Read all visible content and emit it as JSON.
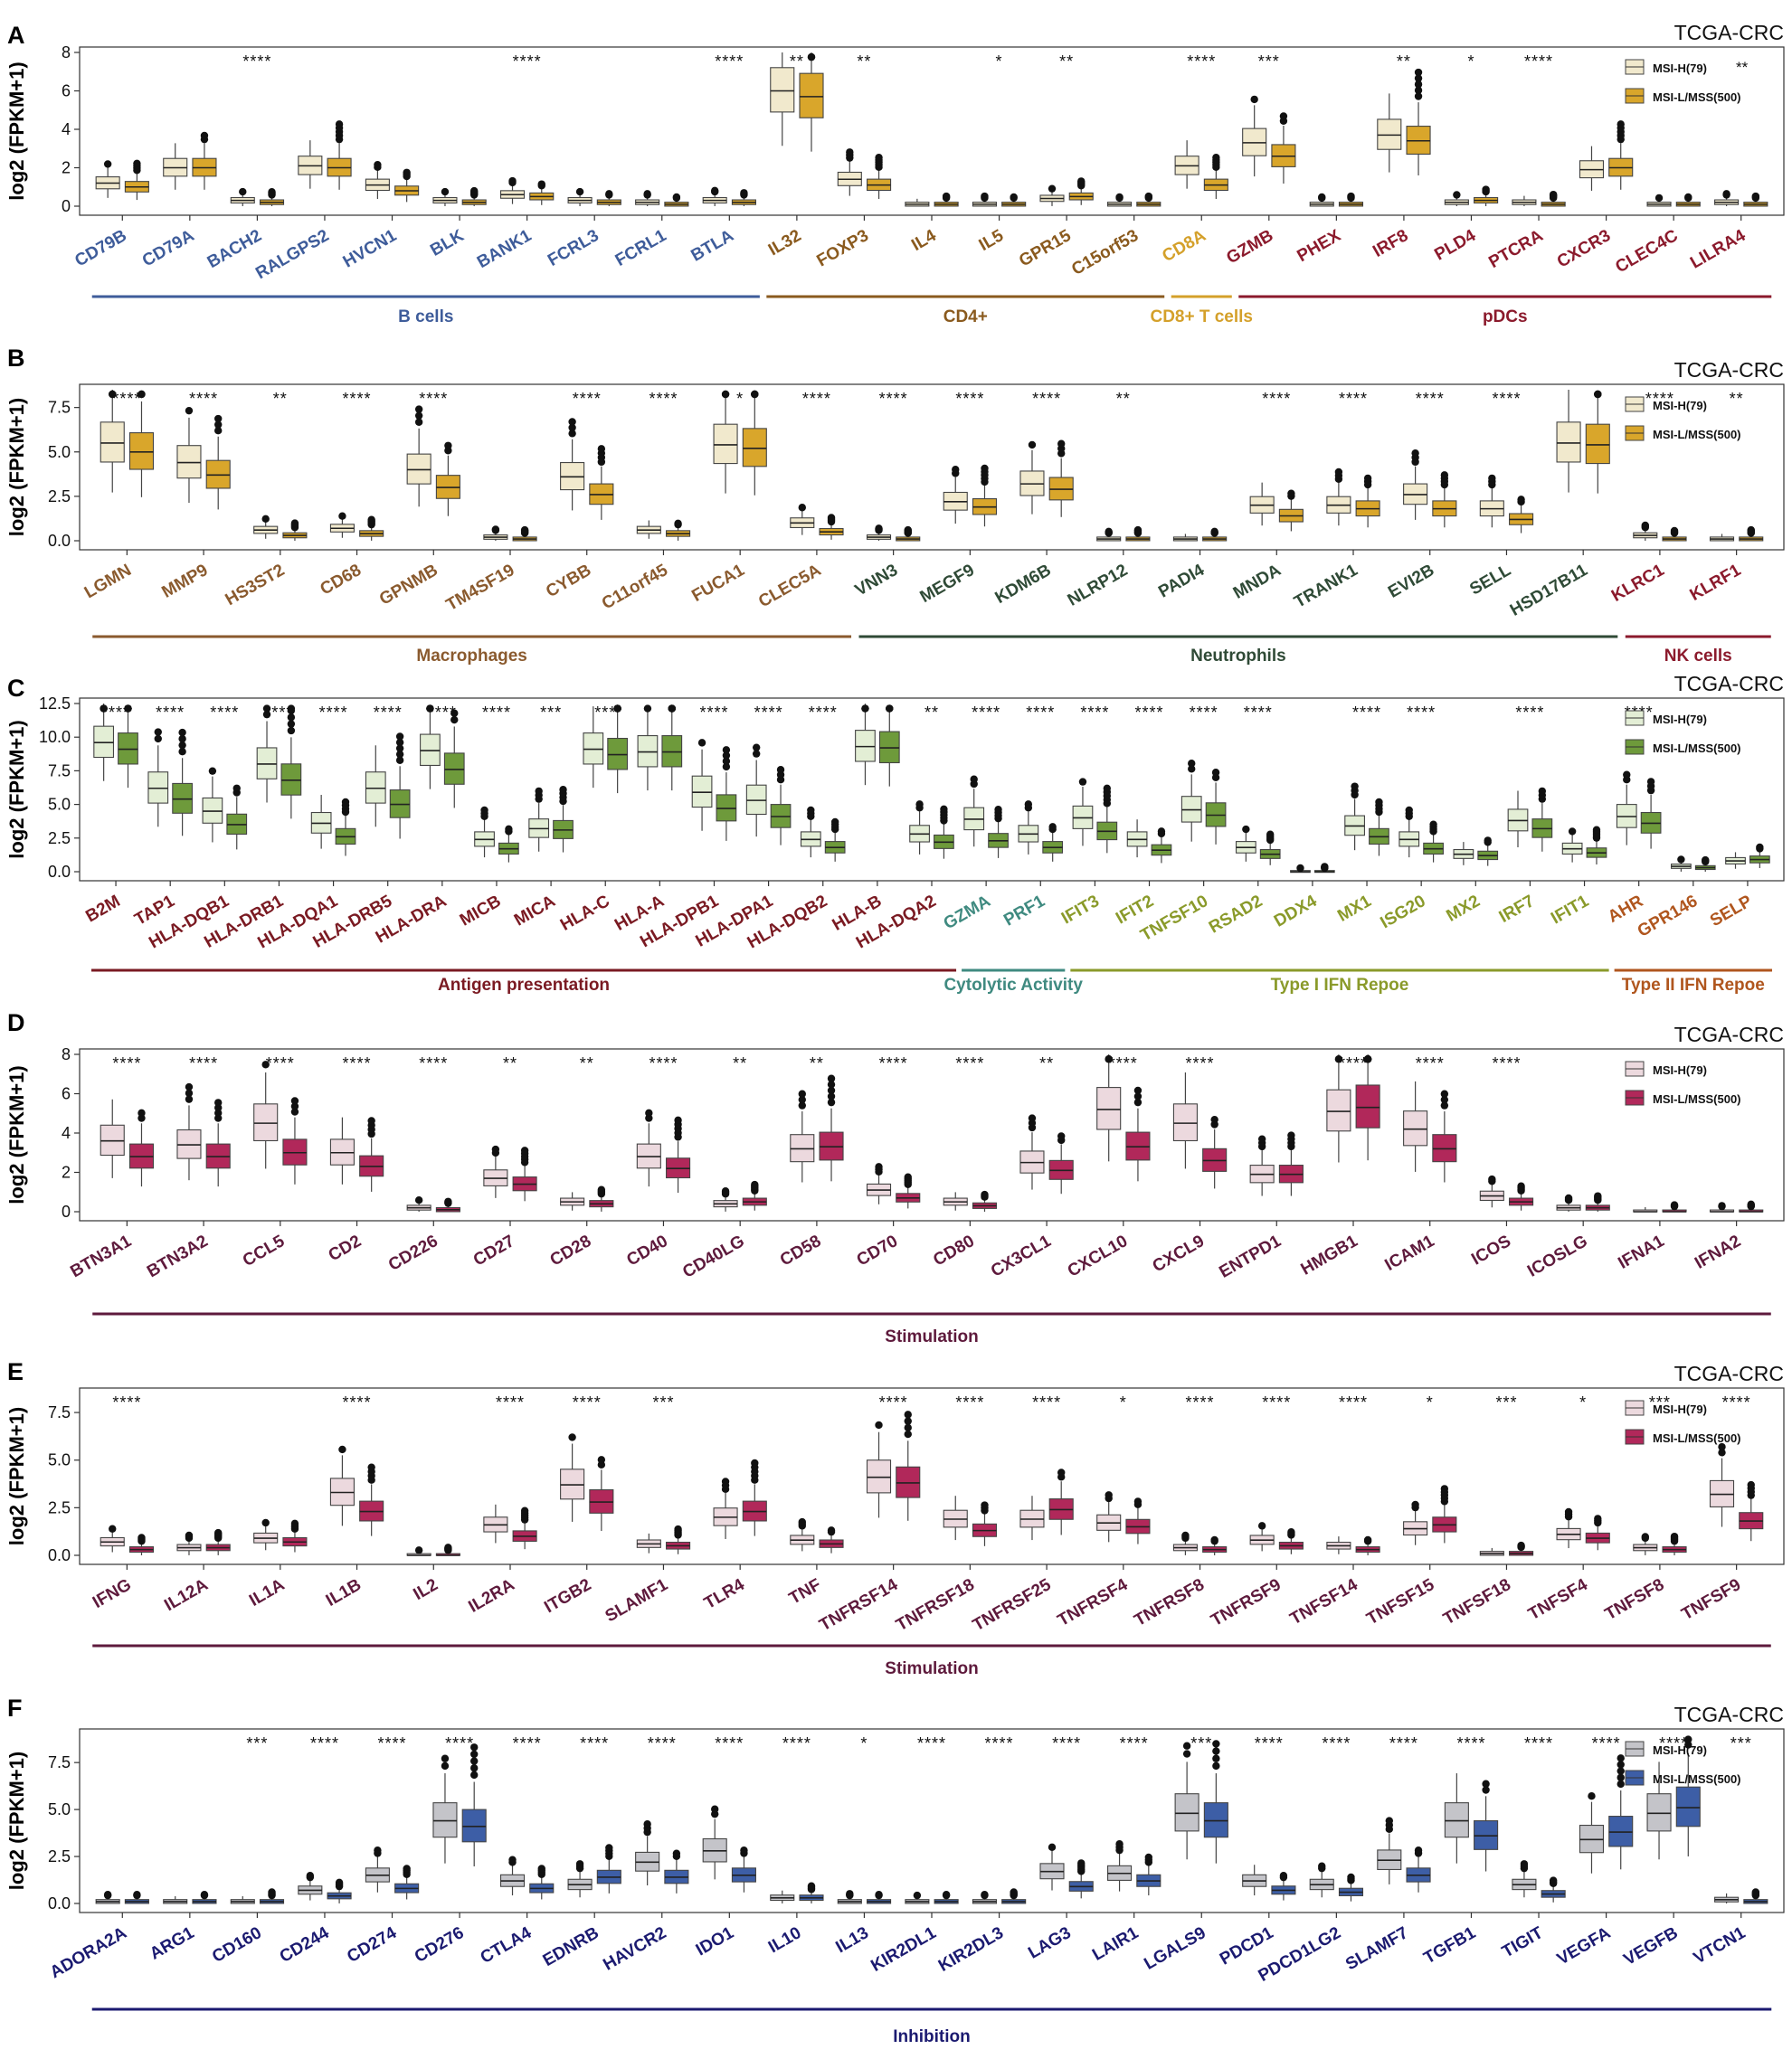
{
  "legend_labels": [
    "MSI-H(79)",
    "MSI-L/MSS(500)"
  ],
  "legend_extra_A": "**",
  "chart_data": [
    {
      "panel": "A",
      "type": "box",
      "dataset": "TCGA-CRC",
      "ylabel": "log2 (FPKM+1)",
      "ylim": [
        0,
        8
      ],
      "yticks": [
        "0",
        "2",
        "4",
        "6",
        "8"
      ],
      "legend_position": "top-right",
      "colors": {
        "high": "#f1e9cd",
        "low": "#d9a62b"
      },
      "genes": [
        "CD79B",
        "CD79A",
        "BACH2",
        "RALGPS2",
        "HVCN1",
        "BLK",
        "BANK1",
        "FCRL3",
        "FCRL1",
        "BTLA",
        "IL32",
        "FOXP3",
        "IL4",
        "IL5",
        "GPR15",
        "C15orf53",
        "CD8A",
        "GZMB",
        "PHEX",
        "IRF8",
        "PLD4",
        "PTCRA",
        "CXCR3",
        "CLEC4C",
        "LILRA4"
      ],
      "gene_colors": [
        "#3e5c9a",
        "#3e5c9a",
        "#3e5c9a",
        "#3e5c9a",
        "#3e5c9a",
        "#3e5c9a",
        "#3e5c9a",
        "#3e5c9a",
        "#3e5c9a",
        "#3e5c9a",
        "#8a5a1e",
        "#8a5a1e",
        "#8a5a1e",
        "#8a5a1e",
        "#8a5a1e",
        "#8a5a1e",
        "#d4a02a",
        "#8b1a2c",
        "#8b1a2c",
        "#8b1a2c",
        "#8b1a2c",
        "#8b1a2c",
        "#8b1a2c",
        "#8b1a2c",
        "#8b1a2c"
      ],
      "sig": [
        "",
        "",
        "****",
        "",
        "",
        "",
        "****",
        "",
        "",
        "****",
        "**",
        "**",
        "",
        "*",
        "**",
        "",
        "****",
        "***",
        "",
        "**",
        "*",
        "****",
        "",
        "",
        ""
      ],
      "groups": [
        {
          "label": "B cells",
          "start": 0,
          "end": 9,
          "color": "#3e5c9a"
        },
        {
          "label": "CD4+",
          "start": 10,
          "end": 15,
          "color": "#8a5a1e"
        },
        {
          "label": "CD8+ T cells",
          "start": 16,
          "end": 16,
          "color": "#d4a02a"
        },
        {
          "label": "pDCs",
          "start": 17,
          "end": 24,
          "color": "#8b1a2c"
        }
      ],
      "medians_high": [
        1.2,
        2.0,
        0.3,
        2.1,
        1.1,
        0.3,
        0.6,
        0.3,
        0.2,
        0.3,
        6.0,
        1.4,
        0.1,
        0.1,
        0.4,
        0.1,
        2.1,
        3.3,
        0.1,
        3.7,
        0.2,
        0.2,
        1.9,
        0.1,
        0.2
      ],
      "medians_low": [
        1.0,
        2.0,
        0.2,
        2.0,
        0.8,
        0.2,
        0.5,
        0.2,
        0.1,
        0.2,
        5.7,
        1.1,
        0.1,
        0.1,
        0.5,
        0.1,
        1.1,
        2.6,
        0.1,
        3.4,
        0.3,
        0.1,
        2.0,
        0.1,
        0.1
      ]
    },
    {
      "panel": "B",
      "type": "box",
      "dataset": "TCGA-CRC",
      "ylabel": "log2 (FPKM+1)",
      "ylim": [
        0,
        8.5
      ],
      "yticks": [
        "0.0",
        "2.5",
        "5.0",
        "7.5"
      ],
      "legend_position": "top-right",
      "colors": {
        "high": "#f1e9cd",
        "low": "#d9a62b"
      },
      "genes": [
        "LGMN",
        "MMP9",
        "HS3ST2",
        "CD68",
        "GPNMB",
        "TM4SF19",
        "CYBB",
        "C11orf45",
        "FUCA1",
        "CLEC5A",
        "VNN3",
        "MEGF9",
        "KDM6B",
        "NLRP12",
        "PADI4",
        "MNDA",
        "TRANK1",
        "EVI2B",
        "SELL",
        "HSD17B11",
        "KLRC1",
        "KLRF1"
      ],
      "gene_colors": [
        "#8a5a2e",
        "#8a5a2e",
        "#8a5a2e",
        "#8a5a2e",
        "#8a5a2e",
        "#8a5a2e",
        "#8a5a2e",
        "#8a5a2e",
        "#8a5a2e",
        "#8a5a2e",
        "#2f4a36",
        "#2f4a36",
        "#2f4a36",
        "#2f4a36",
        "#2f4a36",
        "#2f4a36",
        "#2f4a36",
        "#2f4a36",
        "#2f4a36",
        "#2f4a36",
        "#8b1a2c",
        "#8b1a2c"
      ],
      "sig": [
        "****",
        "****",
        "**",
        "****",
        "****",
        "",
        "****",
        "****",
        "*",
        "****",
        "****",
        "****",
        "****",
        "**",
        "",
        "****",
        "****",
        "****",
        "****",
        "",
        "****",
        "**"
      ],
      "groups": [
        {
          "label": "Macrophages",
          "start": 0,
          "end": 9,
          "color": "#8a5a2e"
        },
        {
          "label": "Neutrophils",
          "start": 10,
          "end": 19,
          "color": "#2f4a36"
        },
        {
          "label": "NK cells",
          "start": 20,
          "end": 21,
          "color": "#8b1a2c"
        }
      ],
      "medians_high": [
        5.5,
        4.4,
        0.6,
        0.7,
        4.0,
        0.2,
        3.6,
        0.6,
        5.4,
        1.0,
        0.2,
        2.2,
        3.2,
        0.1,
        0.1,
        2.0,
        2.0,
        2.6,
        1.8,
        5.5,
        0.3,
        0.1
      ],
      "medians_low": [
        5.0,
        3.7,
        0.3,
        0.4,
        3.0,
        0.1,
        2.6,
        0.4,
        5.2,
        0.5,
        0.1,
        1.9,
        2.9,
        0.1,
        0.1,
        1.4,
        1.8,
        1.8,
        1.2,
        5.4,
        0.1,
        0.1
      ]
    },
    {
      "panel": "C",
      "type": "box",
      "dataset": "TCGA-CRC",
      "ylabel": "log2 (FPKM+1)",
      "ylim": [
        0,
        12.5
      ],
      "yticks": [
        "0.0",
        "2.5",
        "5.0",
        "7.5",
        "10.0",
        "12.5"
      ],
      "legend_position": "top-right",
      "colors": {
        "high": "#e3eed5",
        "low": "#6e9a3b"
      },
      "genes": [
        "B2M",
        "TAP1",
        "HLA-DQB1",
        "HLA-DRB1",
        "HLA-DQA1",
        "HLA-DRB5",
        "HLA-DRA",
        "MICB",
        "MICA",
        "HLA-C",
        "HLA-A",
        "HLA-DPB1",
        "HLA-DPA1",
        "HLA-DQB2",
        "HLA-B",
        "HLA-DQA2",
        "GZMA",
        "PRF1",
        "IFIT3",
        "IFIT2",
        "TNFSF10",
        "RSAD2",
        "DDX4",
        "MX1",
        "ISG20",
        "MX2",
        "IRF7",
        "IFIT1",
        "AHR",
        "GPR146",
        "SELP"
      ],
      "gene_colors": [
        "#7a1a22",
        "#7a1a22",
        "#7a1a22",
        "#7a1a22",
        "#7a1a22",
        "#7a1a22",
        "#7a1a22",
        "#7a1a22",
        "#7a1a22",
        "#7a1a22",
        "#7a1a22",
        "#7a1a22",
        "#7a1a22",
        "#7a1a22",
        "#7a1a22",
        "#7a1a22",
        "#3f8a80",
        "#3f8a80",
        "#8a9a2a",
        "#8a9a2a",
        "#8a9a2a",
        "#8a9a2a",
        "#8a9a2a",
        "#8a9a2a",
        "#8a9a2a",
        "#8a9a2a",
        "#8a9a2a",
        "#8a9a2a",
        "#b0561e",
        "#b0561e",
        "#b0561e"
      ],
      "sig": [
        "****",
        "****",
        "****",
        "****",
        "****",
        "****",
        "****",
        "****",
        "***",
        "***",
        "",
        "****",
        "****",
        "****",
        "",
        "**",
        "****",
        "****",
        "****",
        "****",
        "****",
        "****",
        "",
        "****",
        "****",
        "",
        "****",
        "",
        "****",
        "",
        ""
      ],
      "groups": [
        {
          "label": "Antigen presentation",
          "start": 0,
          "end": 15,
          "color": "#7a1a22"
        },
        {
          "label": "Cytolytic Activity",
          "start": 16,
          "end": 17,
          "color": "#3f8a80"
        },
        {
          "label": "Type I IFN Repoe",
          "start": 18,
          "end": 27,
          "color": "#8a9a2a"
        },
        {
          "label": "Type II IFN Repoe",
          "start": 28,
          "end": 30,
          "color": "#b0561e"
        }
      ],
      "medians_high": [
        9.6,
        6.2,
        4.5,
        8.0,
        3.6,
        6.2,
        9.0,
        2.4,
        3.2,
        9.1,
        8.9,
        5.9,
        5.3,
        2.4,
        9.3,
        2.8,
        3.9,
        2.8,
        4.0,
        2.4,
        4.6,
        1.8,
        0.0,
        3.4,
        2.4,
        1.3,
        3.8,
        1.7,
        4.1,
        0.4,
        0.8
      ],
      "medians_low": [
        9.1,
        5.4,
        3.5,
        6.8,
        2.6,
        5.0,
        7.6,
        1.7,
        3.1,
        8.7,
        8.9,
        4.7,
        4.1,
        1.8,
        9.2,
        2.2,
        2.3,
        1.8,
        3.0,
        1.6,
        4.2,
        1.3,
        0.0,
        2.6,
        1.7,
        1.2,
        3.2,
        1.4,
        3.6,
        0.3,
        0.9
      ]
    },
    {
      "panel": "D",
      "type": "box",
      "dataset": "TCGA-CRC",
      "ylabel": "log2 (FPKM+1)",
      "ylim": [
        0,
        8
      ],
      "yticks": [
        "0",
        "2",
        "4",
        "6",
        "8"
      ],
      "legend_position": "top-right",
      "colors": {
        "high": "#ecd9de",
        "low": "#b1285a"
      },
      "genes": [
        "BTN3A1",
        "BTN3A2",
        "CCL5",
        "CD2",
        "CD226",
        "CD27",
        "CD28",
        "CD40",
        "CD40LG",
        "CD58",
        "CD70",
        "CD80",
        "CX3CL1",
        "CXCL10",
        "CXCL9",
        "ENTPD1",
        "HMGB1",
        "ICAM1",
        "ICOS",
        "ICOSLG",
        "IFNA1",
        "IFNA2"
      ],
      "gene_colors": [
        "#5e1a3c",
        "#5e1a3c",
        "#5e1a3c",
        "#5e1a3c",
        "#5e1a3c",
        "#5e1a3c",
        "#5e1a3c",
        "#5e1a3c",
        "#5e1a3c",
        "#5e1a3c",
        "#5e1a3c",
        "#5e1a3c",
        "#5e1a3c",
        "#5e1a3c",
        "#5e1a3c",
        "#5e1a3c",
        "#5e1a3c",
        "#5e1a3c",
        "#5e1a3c",
        "#5e1a3c",
        "#5e1a3c",
        "#5e1a3c"
      ],
      "sig": [
        "****",
        "****",
        "****",
        "****",
        "****",
        "**",
        "**",
        "****",
        "**",
        "**",
        "****",
        "****",
        "**",
        "****",
        "****",
        "",
        "****",
        "****",
        "****",
        "",
        "",
        ""
      ],
      "groups": [
        {
          "label": "Stimulation",
          "start": 0,
          "end": 21,
          "color": "#5e1a3c"
        }
      ],
      "medians_high": [
        3.6,
        3.4,
        4.5,
        3.0,
        0.2,
        1.7,
        0.5,
        2.8,
        0.4,
        3.2,
        1.1,
        0.5,
        2.5,
        5.2,
        4.5,
        1.9,
        5.1,
        4.2,
        0.8,
        0.2,
        0.0,
        0.0
      ],
      "medians_low": [
        2.8,
        2.8,
        3.0,
        2.3,
        0.1,
        1.4,
        0.4,
        2.2,
        0.5,
        3.3,
        0.7,
        0.3,
        2.1,
        3.3,
        2.6,
        1.9,
        5.3,
        3.2,
        0.5,
        0.2,
        0.0,
        0.0
      ]
    },
    {
      "panel": "E",
      "type": "box",
      "dataset": "TCGA-CRC",
      "ylabel": "log2 (FPKM+1)",
      "ylim": [
        0,
        8.5
      ],
      "yticks": [
        "0.0",
        "2.5",
        "5.0",
        "7.5"
      ],
      "legend_position": "top-right",
      "colors": {
        "high": "#ecd9de",
        "low": "#b1285a"
      },
      "genes": [
        "IFNG",
        "IL12A",
        "IL1A",
        "IL1B",
        "IL2",
        "IL2RA",
        "ITGB2",
        "SLAMF1",
        "TLR4",
        "TNF",
        "TNFRSF14",
        "TNFRSF18",
        "TNFRSF25",
        "TNFRSF4",
        "TNFRSF8",
        "TNFRSF9",
        "TNFSF14",
        "TNFSF15",
        "TNFSF18",
        "TNFSF4",
        "TNFSF8",
        "TNFSF9"
      ],
      "gene_colors": [
        "#5e1a3c",
        "#5e1a3c",
        "#5e1a3c",
        "#5e1a3c",
        "#5e1a3c",
        "#5e1a3c",
        "#5e1a3c",
        "#5e1a3c",
        "#5e1a3c",
        "#5e1a3c",
        "#5e1a3c",
        "#5e1a3c",
        "#5e1a3c",
        "#5e1a3c",
        "#5e1a3c",
        "#5e1a3c",
        "#5e1a3c",
        "#5e1a3c",
        "#5e1a3c",
        "#5e1a3c",
        "#5e1a3c",
        "#5e1a3c"
      ],
      "sig": [
        "****",
        "",
        "",
        "****",
        "",
        "****",
        "****",
        "***",
        "",
        "",
        "****",
        "****",
        "****",
        "*",
        "****",
        "****",
        "****",
        "*",
        "***",
        "*",
        "***",
        "****"
      ],
      "groups": [
        {
          "label": "Stimulation",
          "start": 0,
          "end": 21,
          "color": "#5e1a3c"
        }
      ],
      "medians_high": [
        0.7,
        0.4,
        0.9,
        3.3,
        0.0,
        1.6,
        3.7,
        0.6,
        2.0,
        0.8,
        4.1,
        1.9,
        1.9,
        1.7,
        0.4,
        0.8,
        0.5,
        1.4,
        0.1,
        1.1,
        0.4,
        3.2
      ],
      "medians_low": [
        0.3,
        0.4,
        0.7,
        2.3,
        0.0,
        1.0,
        2.8,
        0.5,
        2.3,
        0.6,
        3.8,
        1.3,
        2.4,
        1.5,
        0.3,
        0.5,
        0.3,
        1.6,
        0.1,
        0.9,
        0.3,
        1.8
      ]
    },
    {
      "panel": "F",
      "type": "box",
      "dataset": "TCGA-CRC",
      "ylabel": "log2 (FPKM+1)",
      "ylim": [
        0,
        9
      ],
      "yticks": [
        "0.0",
        "2.5",
        "5.0",
        "7.5"
      ],
      "legend_position": "top-right",
      "colors": {
        "high": "#c4c4c9",
        "low": "#3d5ea6"
      },
      "genes": [
        "ADORA2A",
        "ARG1",
        "CD160",
        "CD244",
        "CD274",
        "CD276",
        "CTLA4",
        "EDNRB",
        "HAVCR2",
        "IDO1",
        "IL10",
        "IL13",
        "KIR2DL1",
        "KIR2DL3",
        "LAG3",
        "LAIR1",
        "LGALS9",
        "PDCD1",
        "PDCD1LG2",
        "SLAMF7",
        "TGFB1",
        "TIGIT",
        "VEGFA",
        "VEGFB",
        "VTCN1"
      ],
      "gene_colors": [
        "#1b1a70",
        "#1b1a70",
        "#1b1a70",
        "#1b1a70",
        "#1b1a70",
        "#1b1a70",
        "#1b1a70",
        "#1b1a70",
        "#1b1a70",
        "#1b1a70",
        "#1b1a70",
        "#1b1a70",
        "#1b1a70",
        "#1b1a70",
        "#1b1a70",
        "#1b1a70",
        "#1b1a70",
        "#1b1a70",
        "#1b1a70",
        "#1b1a70",
        "#1b1a70",
        "#1b1a70",
        "#1b1a70",
        "#1b1a70",
        "#1b1a70"
      ],
      "sig": [
        "",
        "",
        "***",
        "****",
        "****",
        "****",
        "****",
        "****",
        "****",
        "****",
        "****",
        "*",
        "****",
        "****",
        "****",
        "****",
        "***",
        "****",
        "****",
        "****",
        "****",
        "****",
        "****",
        "****",
        "***"
      ],
      "groups": [
        {
          "label": "Inhibition",
          "start": 0,
          "end": 24,
          "color": "#1b1a70"
        }
      ],
      "medians_high": [
        0.1,
        0.1,
        0.1,
        0.7,
        1.5,
        4.4,
        1.2,
        1.0,
        2.2,
        2.8,
        0.3,
        0.1,
        0.1,
        0.1,
        1.7,
        1.6,
        4.8,
        1.2,
        1.0,
        2.3,
        4.4,
        1.0,
        3.4,
        4.8,
        0.2
      ],
      "medians_low": [
        0.1,
        0.1,
        0.1,
        0.4,
        0.8,
        4.1,
        0.8,
        1.4,
        1.4,
        1.5,
        0.3,
        0.1,
        0.1,
        0.1,
        0.9,
        1.2,
        4.4,
        0.7,
        0.6,
        1.5,
        3.6,
        0.5,
        3.8,
        5.1,
        0.1
      ]
    }
  ]
}
